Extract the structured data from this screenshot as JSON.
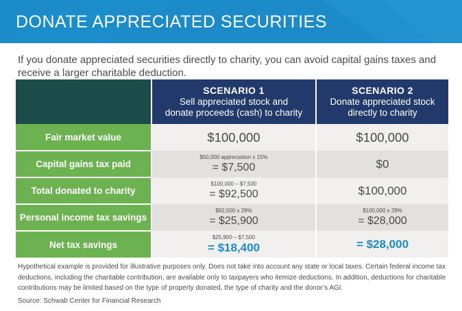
{
  "banner": {
    "title": "DONATE APPRECIATED SECURITIES",
    "background_color": "#1b8cc9"
  },
  "intro": "If you donate appreciated securities directly to charity, you can avoid capital gains taxes and receive a larger charitable deduction.",
  "table": {
    "scenario_1": {
      "name": "SCENARIO 1",
      "description_line_1": "Sell appreciated stock and",
      "description_line_2": "donate proceeds (cash) to charity"
    },
    "scenario_2": {
      "name": "SCENARIO 2",
      "description_line_1": "Donate appreciated stock",
      "description_line_2": "directly to charity"
    },
    "rows": [
      {
        "label": "Fair market value",
        "s1_value": "$100,000",
        "s2_value": "$100,000"
      },
      {
        "label": "Capital gains tax paid",
        "s1_note": "$50,000 appreciation x 15%",
        "s1_value": "= $7,500",
        "s2_value": "$0"
      },
      {
        "label": "Total donated to charity",
        "s1_note": "$100,000 – $7,500",
        "s1_value": "= $92,500",
        "s2_value": "$100,000"
      },
      {
        "label": "Personal income tax savings",
        "s1_note": "$92,500 x 28%",
        "s1_value": "= $25,900",
        "s2_note": "$100,000 x 28%",
        "s2_value": "= $28,000"
      },
      {
        "label": "Net tax savings",
        "s1_note": "$25,900 – $7,500",
        "s1_value": "= $18,400",
        "s2_value": "= $28,000"
      }
    ],
    "colors": {
      "corner": "#1c4c4a",
      "scenario_header": "#213a6b",
      "row_label": "#6cb251",
      "highlight_value": "#1b8cc9"
    }
  },
  "footnote": "Hypothetical example is provided for illustrative purposes only. Does not take into account any state or local taxes. Certain federal income tax deductions, including the charitable contribution, are available only to taxpayers who itemize deductions. In addition, deductions for charitable contributions may be limited based on the type of property donated, the type of charity and the donor’s AGI.",
  "source": "Source: Schwab Center for Financial Research"
}
